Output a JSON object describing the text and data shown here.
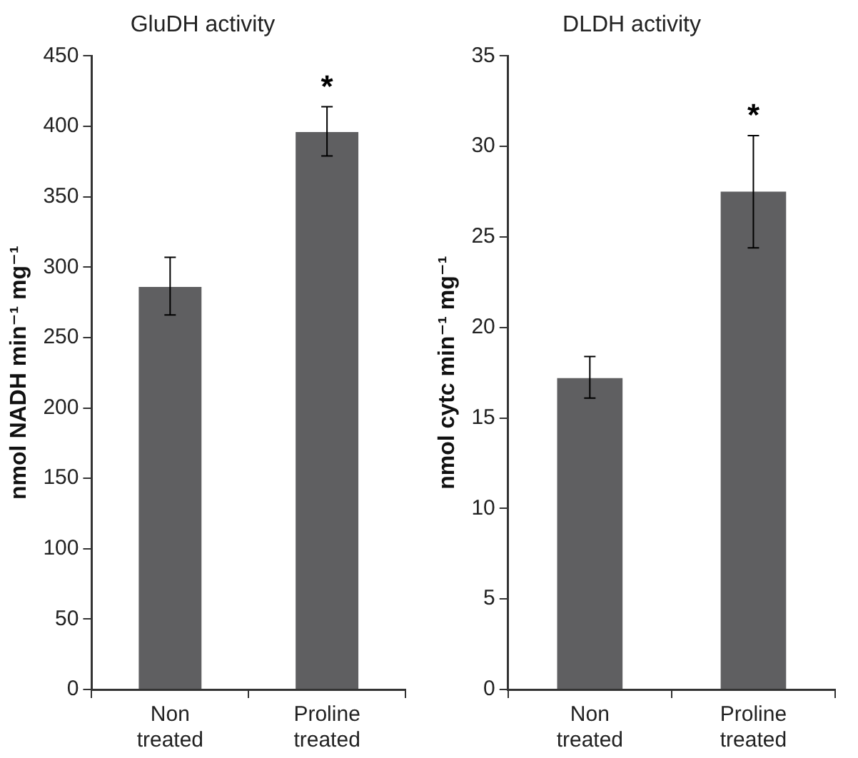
{
  "chart_data": [
    {
      "type": "bar",
      "title": "GluDH activity",
      "ylabel": "nmol NADH min⁻¹ mg⁻¹",
      "categories": [
        "Non treated",
        "Proline treated"
      ],
      "values": [
        286,
        396
      ],
      "errors": [
        [
          266,
          307
        ],
        [
          379,
          414
        ]
      ],
      "color": "#5f5f61",
      "ylim": [
        0,
        450
      ],
      "yticks": [
        0,
        50,
        100,
        150,
        200,
        250,
        300,
        350,
        400,
        450
      ],
      "grid": false,
      "legend": false,
      "annotations": [
        "*"
      ]
    },
    {
      "type": "bar",
      "title": "DLDH activity",
      "ylabel": "nmol cytc min⁻¹ mg⁻¹",
      "categories": [
        "Non treated",
        "Proline treated"
      ],
      "values": [
        17.2,
        27.5
      ],
      "errors": [
        [
          16.1,
          18.4
        ],
        [
          24.4,
          30.6
        ]
      ],
      "color": "#5f5f61",
      "ylim": [
        0,
        35
      ],
      "yticks": [
        0,
        5,
        10,
        15,
        20,
        25,
        30,
        35
      ],
      "grid": false,
      "legend": false,
      "annotations": [
        "*"
      ]
    }
  ]
}
